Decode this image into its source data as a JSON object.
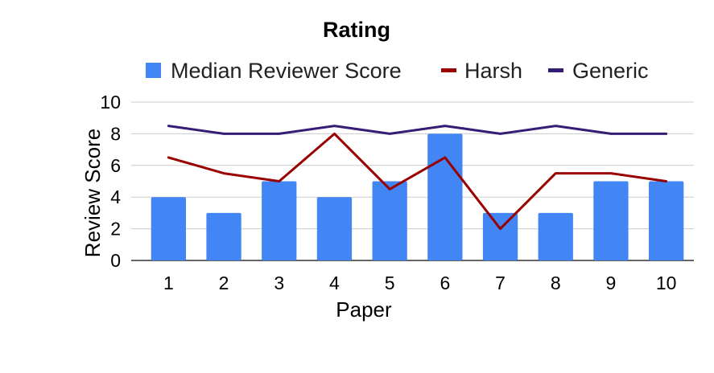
{
  "chart_data": {
    "type": "bar",
    "title": "Rating",
    "xlabel": "Paper",
    "ylabel": "Review Score",
    "categories": [
      "1",
      "2",
      "3",
      "4",
      "5",
      "6",
      "7",
      "8",
      "9",
      "10"
    ],
    "ylim": [
      0,
      10
    ],
    "yticks": [
      "0",
      "2",
      "4",
      "6",
      "8",
      "10"
    ],
    "grid": true,
    "legend_position": "top",
    "series": [
      {
        "name": "Median Reviewer Score",
        "type": "bar",
        "color": "#4285f4",
        "values": [
          4,
          3,
          5,
          4,
          5,
          8,
          3,
          3,
          5,
          5
        ]
      },
      {
        "name": "Harsh",
        "type": "line",
        "color": "#990000",
        "values": [
          6.5,
          5.5,
          5,
          8,
          4.5,
          6.5,
          2,
          5.5,
          5.5,
          5
        ]
      },
      {
        "name": "Generic",
        "type": "line",
        "color": "#351c75",
        "values": [
          8.5,
          8,
          8,
          8.5,
          8,
          8.5,
          8,
          8.5,
          8,
          8
        ]
      }
    ]
  }
}
